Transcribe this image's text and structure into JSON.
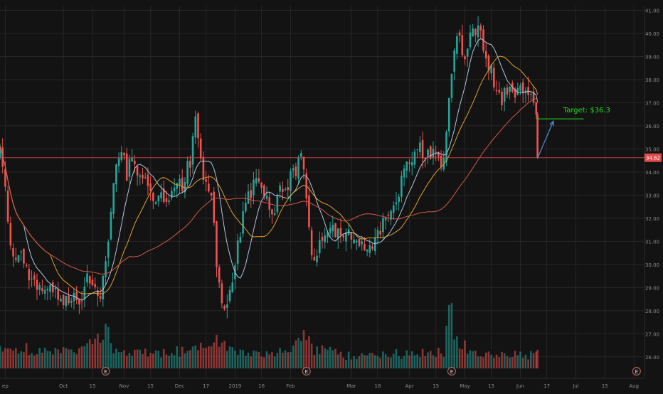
{
  "theme": {
    "background": "#131313",
    "grid": "#262626",
    "axis_text": "#8a8a8a",
    "up": "#26a69a",
    "down": "#ef5350",
    "ma_fast": "#b0c4de",
    "ma_mid": "#e0a030",
    "ma_slow": "#d05a4a",
    "price_line": "#e14b4b",
    "target_color": "#22dd22",
    "arrow_color": "#4a90e2",
    "earnings_icon": "E"
  },
  "chart_data": {
    "type": "candlestick",
    "ylim": [
      25.5,
      41.2
    ],
    "yticks": [
      26,
      27,
      28,
      29,
      30,
      31,
      32,
      33,
      34,
      35,
      36,
      37,
      38,
      39,
      40,
      41
    ],
    "ytick_labels": [
      "26.00",
      "27.00",
      "28.00",
      "29.00",
      "30.00",
      "31.00",
      "32.00",
      "33.00",
      "34.00",
      "35.00",
      "36.00",
      "37.00",
      "38.00",
      "39.00",
      "40.00",
      "41.00"
    ],
    "xticks": [
      {
        "label": "ep",
        "x": 2
      },
      {
        "label": "Oct",
        "x": 24
      },
      {
        "label": "15",
        "x": 35
      },
      {
        "label": "Nov",
        "x": 47
      },
      {
        "label": "15",
        "x": 57
      },
      {
        "label": "Dec",
        "x": 68
      },
      {
        "label": "17",
        "x": 78
      },
      {
        "label": "2019",
        "x": 89
      },
      {
        "label": "16",
        "x": 99
      },
      {
        "label": "Feb",
        "x": 110
      },
      {
        "label": "Mar",
        "x": 133
      },
      {
        "label": "18",
        "x": 143
      },
      {
        "label": "Apr",
        "x": 155
      },
      {
        "label": "15",
        "x": 165
      },
      {
        "label": "May",
        "x": 176
      },
      {
        "label": "15",
        "x": 186
      },
      {
        "label": "Jun",
        "x": 197
      },
      {
        "label": "17",
        "x": 207
      },
      {
        "label": "Jul",
        "x": 218
      },
      {
        "label": "15",
        "x": 229
      },
      {
        "label": "Aug",
        "x": 240
      }
    ],
    "x_domain": [
      0,
      244
    ],
    "last_price": 34.62,
    "last_price_label": "34.62",
    "target": {
      "label": "Target: $36.3",
      "value": 36.3,
      "x_start": 203,
      "x_end": 221
    },
    "arrow": {
      "from": [
        203.5,
        34.6
      ],
      "to": [
        209.5,
        36.2
      ]
    },
    "earnings_markers_x": [
      40,
      116,
      171,
      241
    ],
    "anchors": [
      [
        0,
        34.8
      ],
      [
        2,
        33.2
      ],
      [
        4,
        31.0
      ],
      [
        6,
        30.2
      ],
      [
        8,
        30.6
      ],
      [
        10,
        29.8
      ],
      [
        12,
        29.4
      ],
      [
        14,
        29.2
      ],
      [
        16,
        28.9
      ],
      [
        18,
        28.7
      ],
      [
        20,
        28.7
      ],
      [
        22,
        28.9
      ],
      [
        24,
        28.6
      ],
      [
        26,
        28.5
      ],
      [
        28,
        28.4
      ],
      [
        30,
        28.6
      ],
      [
        32,
        29.0
      ],
      [
        34,
        29.4
      ],
      [
        36,
        29.0
      ],
      [
        38,
        28.9
      ],
      [
        40,
        29.7
      ],
      [
        42,
        32.2
      ],
      [
        44,
        34.2
      ],
      [
        46,
        34.6
      ],
      [
        48,
        34.0
      ],
      [
        50,
        34.3
      ],
      [
        52,
        33.8
      ],
      [
        54,
        33.6
      ],
      [
        56,
        33.2
      ],
      [
        58,
        33.1
      ],
      [
        60,
        32.6
      ],
      [
        62,
        33.1
      ],
      [
        64,
        32.4
      ],
      [
        66,
        33.1
      ],
      [
        68,
        33.3
      ],
      [
        70,
        33.9
      ],
      [
        72,
        34.2
      ],
      [
        74,
        36.3
      ],
      [
        76,
        34.3
      ],
      [
        78,
        33.9
      ],
      [
        80,
        33.0
      ],
      [
        82,
        30.3
      ],
      [
        84,
        28.2
      ],
      [
        86,
        28.6
      ],
      [
        88,
        29.0
      ],
      [
        90,
        30.6
      ],
      [
        92,
        32.4
      ],
      [
        94,
        32.9
      ],
      [
        96,
        33.5
      ],
      [
        98,
        33.6
      ],
      [
        100,
        33.3
      ],
      [
        102,
        32.2
      ],
      [
        104,
        32.4
      ],
      [
        106,
        33.0
      ],
      [
        108,
        33.3
      ],
      [
        110,
        33.6
      ],
      [
        112,
        34.2
      ],
      [
        114,
        35.0
      ],
      [
        116,
        33.2
      ],
      [
        118,
        30.6
      ],
      [
        120,
        30.5
      ],
      [
        122,
        31.2
      ],
      [
        124,
        31.5
      ],
      [
        126,
        31.4
      ],
      [
        128,
        31.7
      ],
      [
        130,
        31.5
      ],
      [
        132,
        31.3
      ],
      [
        134,
        31.0
      ],
      [
        136,
        30.8
      ],
      [
        138,
        30.7
      ],
      [
        140,
        30.7
      ],
      [
        142,
        31.0
      ],
      [
        144,
        31.4
      ],
      [
        146,
        32.3
      ],
      [
        148,
        32.4
      ],
      [
        150,
        32.8
      ],
      [
        152,
        33.4
      ],
      [
        154,
        34.0
      ],
      [
        156,
        34.6
      ],
      [
        158,
        34.9
      ],
      [
        160,
        35.0
      ],
      [
        162,
        34.7
      ],
      [
        164,
        34.6
      ],
      [
        166,
        34.5
      ],
      [
        168,
        34.6
      ],
      [
        170,
        37.3
      ],
      [
        172,
        39.4
      ],
      [
        174,
        39.6
      ],
      [
        176,
        39.3
      ],
      [
        178,
        39.7
      ],
      [
        180,
        40.2
      ],
      [
        182,
        39.8
      ],
      [
        184,
        38.7
      ],
      [
        186,
        38.3
      ],
      [
        188,
        37.8
      ],
      [
        190,
        37.3
      ],
      [
        192,
        37.6
      ],
      [
        194,
        37.4
      ],
      [
        196,
        37.3
      ],
      [
        198,
        37.7
      ],
      [
        200,
        37.6
      ],
      [
        202,
        36.9
      ],
      [
        203,
        36.4
      ],
      [
        203.5,
        34.6
      ]
    ],
    "volume_anchors": [
      [
        0,
        0.3
      ],
      [
        10,
        0.27
      ],
      [
        20,
        0.25
      ],
      [
        30,
        0.24
      ],
      [
        38,
        0.38
      ],
      [
        40,
        0.55
      ],
      [
        42,
        0.32
      ],
      [
        50,
        0.22
      ],
      [
        60,
        0.22
      ],
      [
        70,
        0.24
      ],
      [
        78,
        0.3
      ],
      [
        82,
        0.45
      ],
      [
        84,
        0.3
      ],
      [
        90,
        0.22
      ],
      [
        100,
        0.22
      ],
      [
        110,
        0.24
      ],
      [
        114,
        0.35
      ],
      [
        116,
        0.6
      ],
      [
        118,
        0.28
      ],
      [
        130,
        0.18
      ],
      [
        140,
        0.18
      ],
      [
        150,
        0.2
      ],
      [
        160,
        0.2
      ],
      [
        168,
        0.22
      ],
      [
        170,
        1.0
      ],
      [
        172,
        0.4
      ],
      [
        180,
        0.2
      ],
      [
        190,
        0.18
      ],
      [
        200,
        0.18
      ],
      [
        203.5,
        0.2
      ]
    ],
    "ma_fast_period": 10,
    "ma_mid_period": 20,
    "ma_slow_period": 50
  }
}
